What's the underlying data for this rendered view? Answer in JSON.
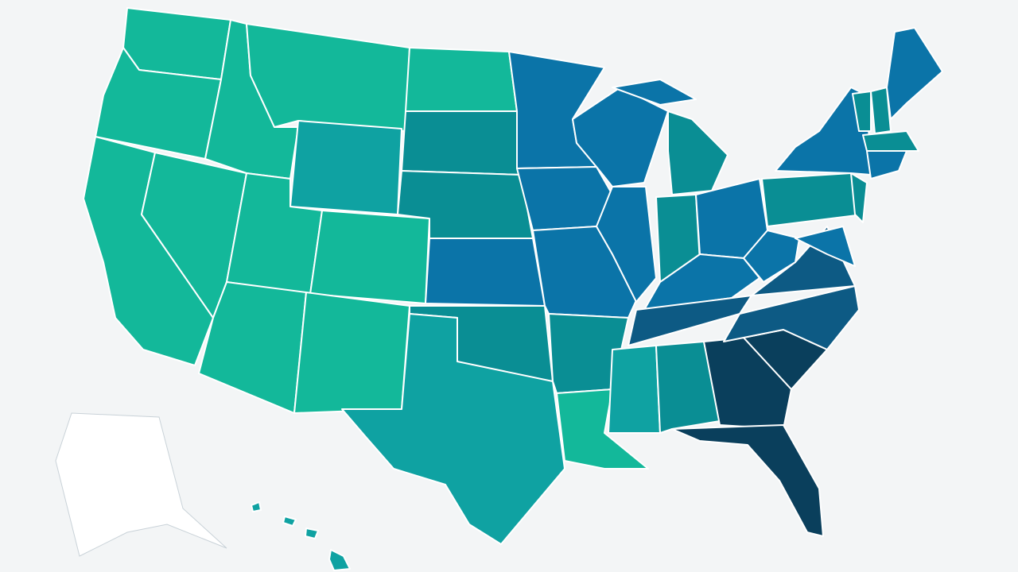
{
  "map": {
    "background": "#f3f5f6",
    "border": "#ffffff",
    "palette": [
      "#13b89a",
      "#0fa2a2",
      "#0a8e94",
      "#0b74a8",
      "#0d5a84",
      "#0a3f5c",
      "#ffffff"
    ],
    "outline": "#c9d2d8"
  }
}
